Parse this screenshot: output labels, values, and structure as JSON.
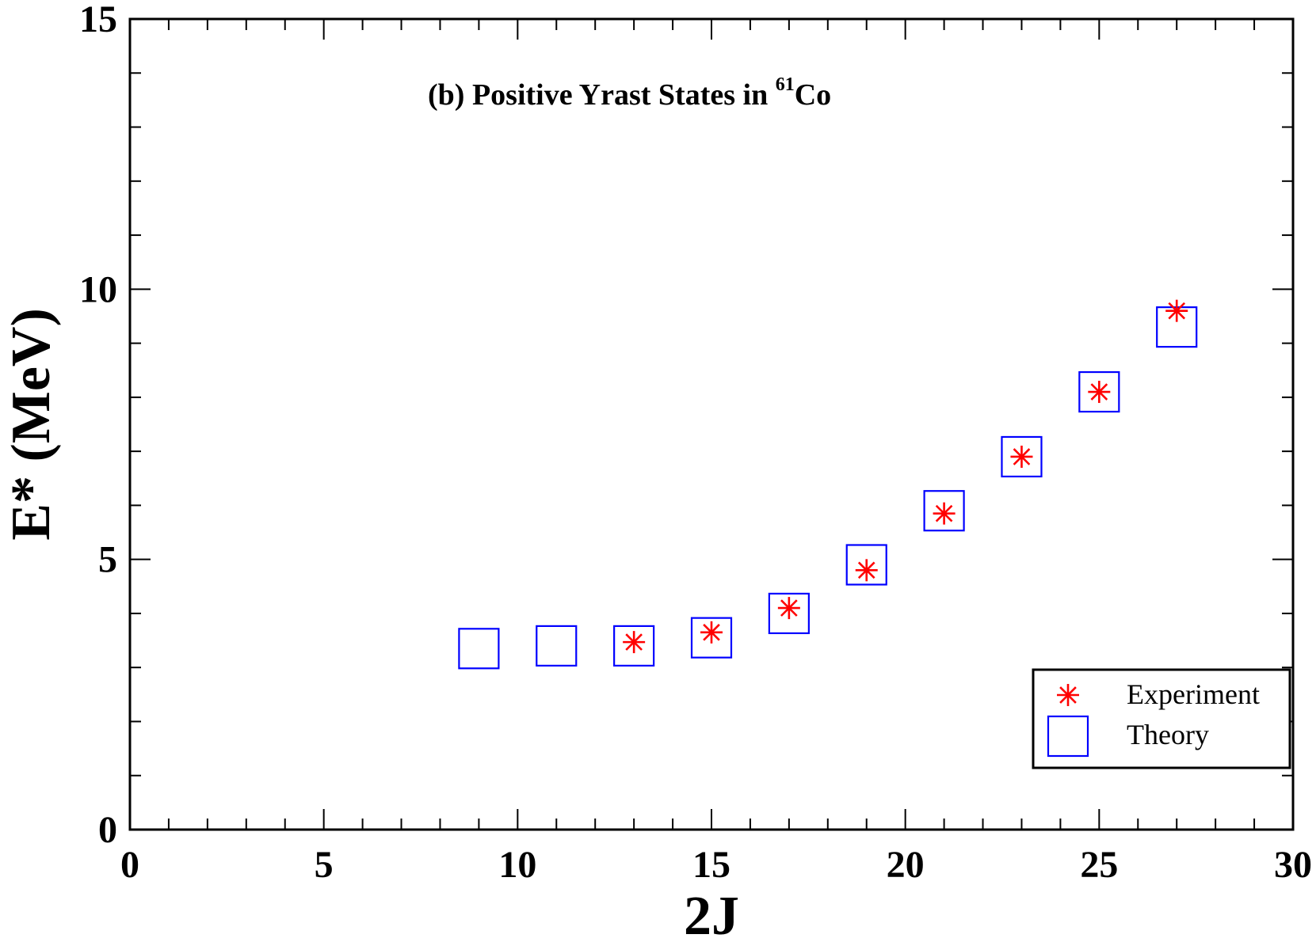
{
  "chart_data": {
    "type": "scatter",
    "title": {
      "prefix": "(b) Positive Yrast States in ",
      "superscript": "61",
      "element": "Co"
    },
    "xlabel": "2J",
    "ylabel": "E* (MeV)",
    "xlim": [
      0,
      30
    ],
    "ylim": [
      0,
      15
    ],
    "x_major_ticks": [
      0,
      5,
      10,
      15,
      20,
      25,
      30
    ],
    "x_minor_step": 1,
    "y_major_ticks": [
      0,
      5,
      10,
      15
    ],
    "y_minor_step": 1,
    "legend_position": "bottom-right",
    "series": [
      {
        "name": "Experiment",
        "marker": "asterisk",
        "color": "#ff0000",
        "x": [
          13,
          15,
          17,
          19,
          21,
          23,
          25,
          27
        ],
        "y": [
          3.47,
          3.65,
          4.1,
          4.8,
          5.85,
          6.9,
          8.1,
          9.6
        ]
      },
      {
        "name": "Theory",
        "marker": "open-square",
        "color": "#0000ff",
        "x": [
          9,
          11,
          13,
          15,
          17,
          19,
          21,
          23,
          25,
          27
        ],
        "y": [
          3.35,
          3.4,
          3.4,
          3.55,
          4.0,
          4.9,
          5.9,
          6.9,
          8.1,
          9.3
        ]
      }
    ]
  }
}
